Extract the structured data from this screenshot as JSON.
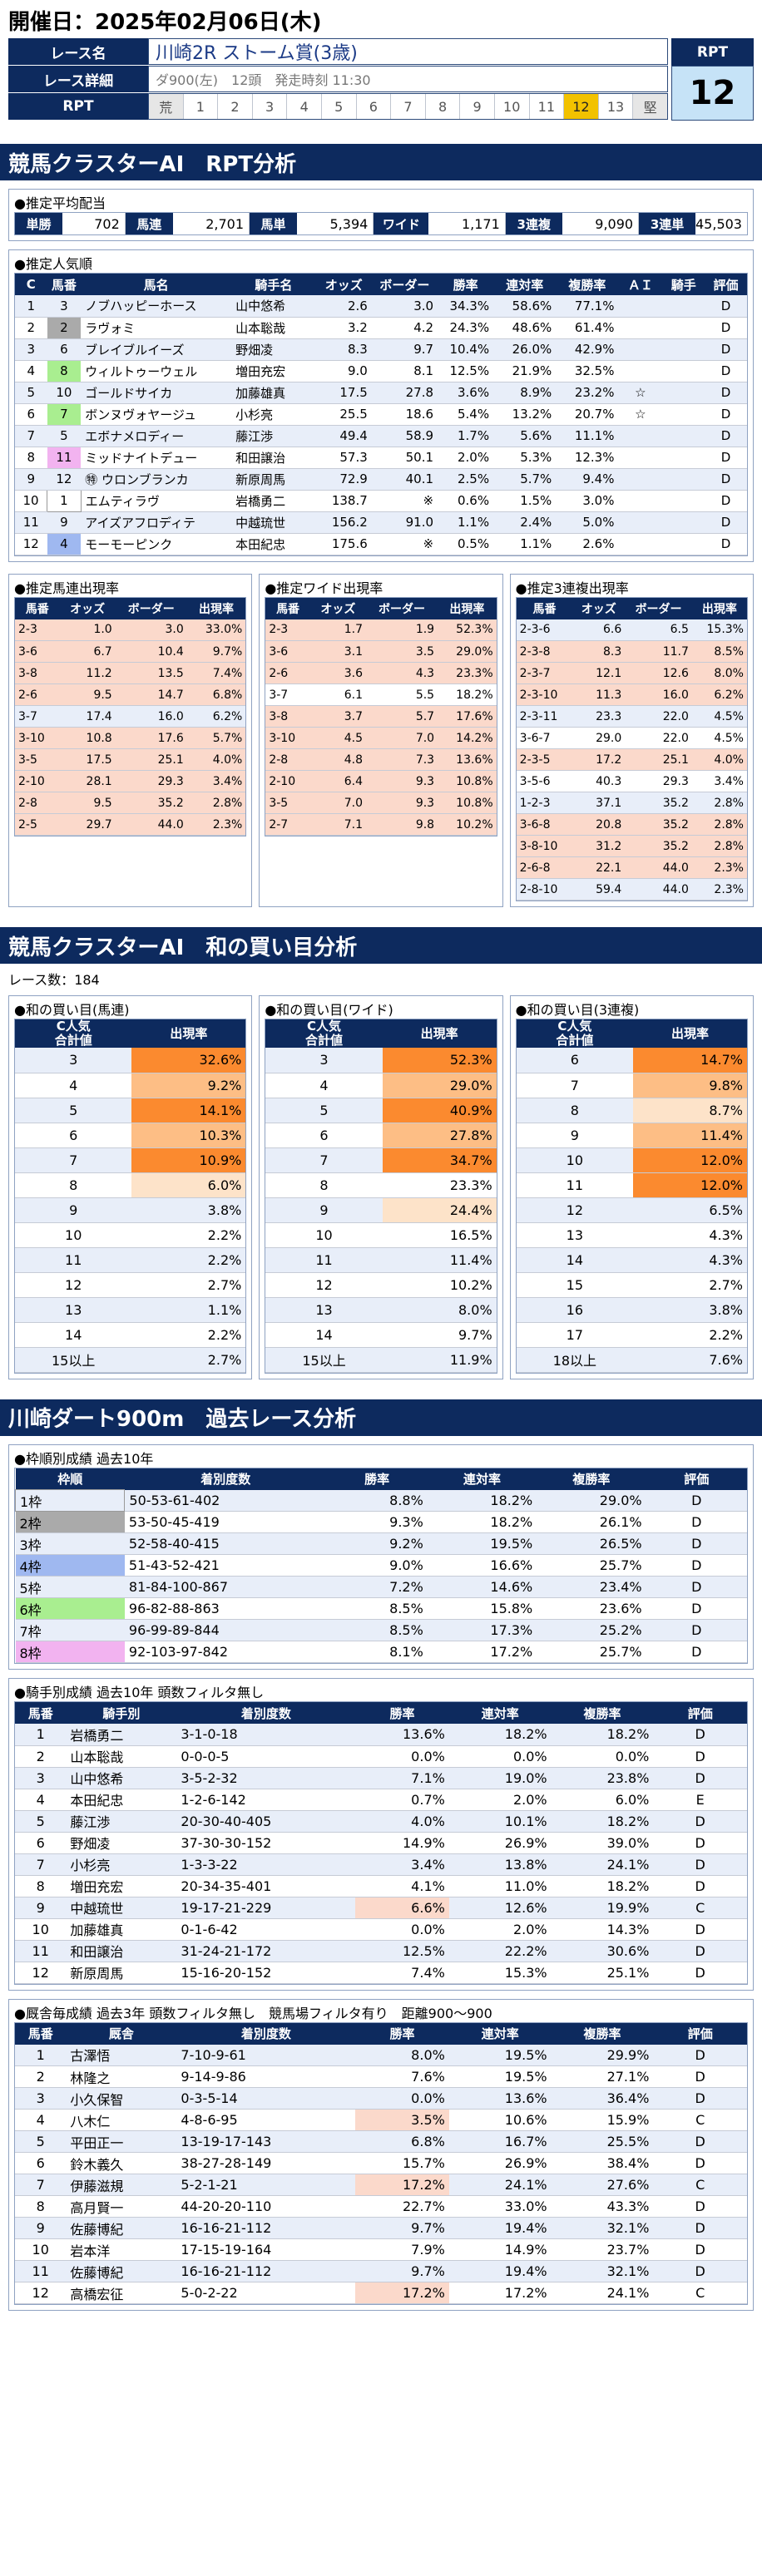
{
  "page_title": "開催日：2025年02月06日(木)",
  "header": {
    "race_name_label": "レース名",
    "race_name": "川崎2R ストーム賞(3歳)",
    "race_detail_label": "レース詳細",
    "race_detail": "ダ900(左)　12頭　発走時刻 11:30",
    "rpt_label": "RPT",
    "rpt_scale": [
      "荒",
      "1",
      "2",
      "3",
      "4",
      "5",
      "6",
      "7",
      "8",
      "9",
      "10",
      "11",
      "12",
      "13",
      "堅"
    ],
    "rpt_active": "12",
    "rpt_box_label": "RPT",
    "rpt_box_value": "12"
  },
  "sec1_title": "競馬クラスターAI　RPT分析",
  "payout": {
    "heading": "●推定平均配当",
    "items": [
      {
        "label": "単勝",
        "value": "702"
      },
      {
        "label": "馬連",
        "value": "2,701"
      },
      {
        "label": "馬単",
        "value": "5,394"
      },
      {
        "label": "ワイド",
        "value": "1,171"
      },
      {
        "label": "3連複",
        "value": "9,090"
      },
      {
        "label": "3連単",
        "value": "45,503"
      }
    ]
  },
  "popularity": {
    "heading": "●推定人気順",
    "columns": [
      "C",
      "馬番",
      "馬名",
      "騎手名",
      "オッズ",
      "ボーダー",
      "勝率",
      "連対率",
      "複勝率",
      "ＡＩ",
      "騎手",
      "評価"
    ],
    "rows": [
      [
        "1",
        "3",
        "ノブハッピーホース",
        "山中悠希",
        "2.6",
        "3.0",
        "34.3%",
        "58.6%",
        "77.1%",
        "",
        "",
        "D"
      ],
      [
        "2",
        "2",
        "ラヴォミ",
        "山本聡哉",
        "3.2",
        "4.2",
        "24.3%",
        "48.6%",
        "61.4%",
        "",
        "",
        "D"
      ],
      [
        "3",
        "6",
        "ブレイブルイーズ",
        "野畑凌",
        "8.3",
        "9.7",
        "10.4%",
        "26.0%",
        "42.9%",
        "",
        "",
        "D"
      ],
      [
        "4",
        "8",
        "ウィルトゥーウェル",
        "増田充宏",
        "9.0",
        "8.1",
        "12.5%",
        "21.9%",
        "32.5%",
        "",
        "",
        "D"
      ],
      [
        "5",
        "10",
        "ゴールドサイカ",
        "加藤雄真",
        "17.5",
        "27.8",
        "3.6%",
        "8.9%",
        "23.2%",
        "☆",
        "",
        "D"
      ],
      [
        "6",
        "7",
        "ボンヌヴォヤージュ",
        "小杉亮",
        "25.5",
        "18.6",
        "5.4%",
        "13.2%",
        "20.7%",
        "☆",
        "",
        "D"
      ],
      [
        "7",
        "5",
        "エボナメロディー",
        "藤江渉",
        "49.4",
        "58.9",
        "1.7%",
        "5.6%",
        "11.1%",
        "",
        "",
        "D"
      ],
      [
        "8",
        "11",
        "ミッドナイトデュー",
        "和田譲治",
        "57.3",
        "50.1",
        "2.0%",
        "5.3%",
        "12.3%",
        "",
        "",
        "D"
      ],
      [
        "9",
        "12",
        "㊕ ウロンブランカ",
        "新原周馬",
        "72.9",
        "40.1",
        "2.5%",
        "5.7%",
        "9.4%",
        "",
        "",
        "D"
      ],
      [
        "10",
        "1",
        "エムティラヴ",
        "岩橋勇二",
        "138.7",
        "※",
        "0.6%",
        "1.5%",
        "3.0%",
        "",
        "",
        "D"
      ],
      [
        "11",
        "9",
        "アイズアフロディテ",
        "中越琉世",
        "156.2",
        "91.0",
        "1.1%",
        "2.4%",
        "5.0%",
        "",
        "",
        "D"
      ],
      [
        "12",
        "4",
        "モーモーピンク",
        "本田紀忠",
        "175.6",
        "※",
        "0.5%",
        "1.1%",
        "2.6%",
        "",
        "",
        "D"
      ]
    ]
  },
  "umaren": {
    "heading": "●推定馬連出現率",
    "columns": [
      "馬番",
      "オッズ",
      "ボーダー",
      "出現率"
    ],
    "rows": [
      [
        "2-3",
        "1.0",
        "3.0",
        "33.0%"
      ],
      [
        "3-6",
        "6.7",
        "10.4",
        "9.7%"
      ],
      [
        "3-8",
        "11.2",
        "13.5",
        "7.4%"
      ],
      [
        "2-6",
        "9.5",
        "14.7",
        "6.8%"
      ],
      [
        "3-7",
        "17.4",
        "16.0",
        "6.2%"
      ],
      [
        "3-10",
        "10.8",
        "17.6",
        "5.7%"
      ],
      [
        "3-5",
        "17.5",
        "25.1",
        "4.0%"
      ],
      [
        "2-10",
        "28.1",
        "29.3",
        "3.4%"
      ],
      [
        "2-8",
        "9.5",
        "35.2",
        "2.8%"
      ],
      [
        "2-5",
        "29.7",
        "44.0",
        "2.3%"
      ]
    ]
  },
  "wide": {
    "heading": "●推定ワイド出現率",
    "columns": [
      "馬番",
      "オッズ",
      "ボーダー",
      "出現率"
    ],
    "rows": [
      [
        "2-3",
        "1.7",
        "1.9",
        "52.3%"
      ],
      [
        "3-6",
        "3.1",
        "3.5",
        "29.0%"
      ],
      [
        "2-6",
        "3.6",
        "4.3",
        "23.3%"
      ],
      [
        "3-7",
        "6.1",
        "5.5",
        "18.2%"
      ],
      [
        "3-8",
        "3.7",
        "5.7",
        "17.6%"
      ],
      [
        "3-10",
        "4.5",
        "7.0",
        "14.2%"
      ],
      [
        "2-8",
        "4.8",
        "7.3",
        "13.6%"
      ],
      [
        "2-10",
        "6.4",
        "9.3",
        "10.8%"
      ],
      [
        "3-5",
        "7.0",
        "9.3",
        "10.8%"
      ],
      [
        "2-7",
        "7.1",
        "9.8",
        "10.2%"
      ]
    ]
  },
  "sanrenpuku": {
    "heading": "●推定3連複出現率",
    "columns": [
      "馬番",
      "オッズ",
      "ボーダー",
      "出現率"
    ],
    "rows": [
      [
        "2-3-6",
        "6.6",
        "6.5",
        "15.3%"
      ],
      [
        "2-3-8",
        "8.3",
        "11.7",
        "8.5%"
      ],
      [
        "2-3-7",
        "12.1",
        "12.6",
        "8.0%"
      ],
      [
        "2-3-10",
        "11.3",
        "16.0",
        "6.2%"
      ],
      [
        "2-3-11",
        "23.3",
        "22.0",
        "4.5%"
      ],
      [
        "3-6-7",
        "29.0",
        "22.0",
        "4.5%"
      ],
      [
        "2-3-5",
        "17.2",
        "25.1",
        "4.0%"
      ],
      [
        "3-5-6",
        "40.3",
        "29.3",
        "3.4%"
      ],
      [
        "1-2-3",
        "37.1",
        "35.2",
        "2.8%"
      ],
      [
        "3-6-8",
        "20.8",
        "35.2",
        "2.8%"
      ],
      [
        "3-8-10",
        "31.2",
        "35.2",
        "2.8%"
      ],
      [
        "2-6-8",
        "22.1",
        "44.0",
        "2.3%"
      ],
      [
        "2-8-10",
        "59.4",
        "44.0",
        "2.3%"
      ]
    ]
  },
  "sec2_title": "競馬クラスターAI　和の買い目分析",
  "race_count": "レース数：184",
  "wa_umaren": {
    "heading": "●和の買い目(馬連)",
    "col1": "C人気\n合計値",
    "col2": "出現率",
    "rows": [
      [
        "3",
        "32.6%"
      ],
      [
        "4",
        "9.2%"
      ],
      [
        "5",
        "14.1%"
      ],
      [
        "6",
        "10.3%"
      ],
      [
        "7",
        "10.9%"
      ],
      [
        "8",
        "6.0%"
      ],
      [
        "9",
        "3.8%"
      ],
      [
        "10",
        "2.2%"
      ],
      [
        "11",
        "2.2%"
      ],
      [
        "12",
        "2.7%"
      ],
      [
        "13",
        "1.1%"
      ],
      [
        "14",
        "2.2%"
      ],
      [
        "15以上",
        "2.7%"
      ]
    ]
  },
  "wa_wide": {
    "heading": "●和の買い目(ワイド)",
    "col1": "C人気\n合計値",
    "col2": "出現率",
    "rows": [
      [
        "3",
        "52.3%"
      ],
      [
        "4",
        "29.0%"
      ],
      [
        "5",
        "40.9%"
      ],
      [
        "6",
        "27.8%"
      ],
      [
        "7",
        "34.7%"
      ],
      [
        "8",
        "23.3%"
      ],
      [
        "9",
        "24.4%"
      ],
      [
        "10",
        "16.5%"
      ],
      [
        "11",
        "11.4%"
      ],
      [
        "12",
        "10.2%"
      ],
      [
        "13",
        "8.0%"
      ],
      [
        "14",
        "9.7%"
      ],
      [
        "15以上",
        "11.9%"
      ]
    ]
  },
  "wa_sanrenpuku": {
    "heading": "●和の買い目(3連複)",
    "col1": "C人気\n合計値",
    "col2": "出現率",
    "rows": [
      [
        "6",
        "14.7%"
      ],
      [
        "7",
        "9.8%"
      ],
      [
        "8",
        "8.7%"
      ],
      [
        "9",
        "11.4%"
      ],
      [
        "10",
        "12.0%"
      ],
      [
        "11",
        "12.0%"
      ],
      [
        "12",
        "6.5%"
      ],
      [
        "13",
        "4.3%"
      ],
      [
        "14",
        "4.3%"
      ],
      [
        "15",
        "2.7%"
      ],
      [
        "16",
        "3.8%"
      ],
      [
        "17",
        "2.2%"
      ],
      [
        "18以上",
        "7.6%"
      ]
    ]
  },
  "sec3_title": "川崎ダート900m　過去レース分析",
  "waku": {
    "heading": "●枠順別成績 過去10年",
    "columns": [
      "枠順",
      "着別度数",
      "勝率",
      "連対率",
      "複勝率",
      "評価"
    ],
    "rows": [
      [
        "1枠",
        "50-53-61-402",
        "8.8%",
        "18.2%",
        "29.0%",
        "D"
      ],
      [
        "2枠",
        "53-50-45-419",
        "9.3%",
        "18.2%",
        "26.1%",
        "D"
      ],
      [
        "3枠",
        "52-58-40-415",
        "9.2%",
        "19.5%",
        "26.5%",
        "D"
      ],
      [
        "4枠",
        "51-43-52-421",
        "9.0%",
        "16.6%",
        "25.7%",
        "D"
      ],
      [
        "5枠",
        "81-84-100-867",
        "7.2%",
        "14.6%",
        "23.4%",
        "D"
      ],
      [
        "6枠",
        "96-82-88-863",
        "8.5%",
        "15.8%",
        "23.6%",
        "D"
      ],
      [
        "7枠",
        "96-99-89-844",
        "8.5%",
        "17.3%",
        "25.2%",
        "D"
      ],
      [
        "8枠",
        "92-103-97-842",
        "8.1%",
        "17.2%",
        "25.7%",
        "D"
      ]
    ]
  },
  "jockey": {
    "heading": "●騎手別成績 過去10年 頭数フィルタ無し",
    "columns": [
      "馬番",
      "騎手別",
      "着別度数",
      "勝率",
      "連対率",
      "複勝率",
      "評価"
    ],
    "rows": [
      [
        "1",
        "岩橋勇二",
        "3-1-0-18",
        "13.6%",
        "18.2%",
        "18.2%",
        "D"
      ],
      [
        "2",
        "山本聡哉",
        "0-0-0-5",
        "0.0%",
        "0.0%",
        "0.0%",
        "D"
      ],
      [
        "3",
        "山中悠希",
        "3-5-2-32",
        "7.1%",
        "19.0%",
        "23.8%",
        "D"
      ],
      [
        "4",
        "本田紀忠",
        "1-2-6-142",
        "0.7%",
        "2.0%",
        "6.0%",
        "E"
      ],
      [
        "5",
        "藤江渉",
        "20-30-40-405",
        "4.0%",
        "10.1%",
        "18.2%",
        "D"
      ],
      [
        "6",
        "野畑凌",
        "37-30-30-152",
        "14.9%",
        "26.9%",
        "39.0%",
        "D"
      ],
      [
        "7",
        "小杉亮",
        "1-3-3-22",
        "3.4%",
        "13.8%",
        "24.1%",
        "D"
      ],
      [
        "8",
        "増田充宏",
        "20-34-35-401",
        "4.1%",
        "11.0%",
        "18.2%",
        "D"
      ],
      [
        "9",
        "中越琉世",
        "19-17-21-229",
        "6.6%",
        "12.6%",
        "19.9%",
        "C"
      ],
      [
        "10",
        "加藤雄真",
        "0-1-6-42",
        "0.0%",
        "2.0%",
        "14.3%",
        "D"
      ],
      [
        "11",
        "和田譲治",
        "31-24-21-172",
        "12.5%",
        "22.2%",
        "30.6%",
        "D"
      ],
      [
        "12",
        "新原周馬",
        "15-16-20-152",
        "7.4%",
        "15.3%",
        "25.1%",
        "D"
      ]
    ]
  },
  "trainer": {
    "heading": "●厩舎毎成績 過去3年 頭数フィルタ無し　競馬場フィルタ有り　距離900～900",
    "columns": [
      "馬番",
      "厩舎",
      "着別度数",
      "勝率",
      "連対率",
      "複勝率",
      "評価"
    ],
    "rows": [
      [
        "1",
        "古澤悟",
        "7-10-9-61",
        "8.0%",
        "19.5%",
        "29.9%",
        "D"
      ],
      [
        "2",
        "林隆之",
        "9-14-9-86",
        "7.6%",
        "19.5%",
        "27.1%",
        "D"
      ],
      [
        "3",
        "小久保智",
        "0-3-5-14",
        "0.0%",
        "13.6%",
        "36.4%",
        "D"
      ],
      [
        "4",
        "八木仁",
        "4-8-6-95",
        "3.5%",
        "10.6%",
        "15.9%",
        "C"
      ],
      [
        "5",
        "平田正一",
        "13-19-17-143",
        "6.8%",
        "16.7%",
        "25.5%",
        "D"
      ],
      [
        "6",
        "鈴木義久",
        "38-27-28-149",
        "15.7%",
        "26.9%",
        "38.4%",
        "D"
      ],
      [
        "7",
        "伊藤滋規",
        "5-2-1-21",
        "17.2%",
        "24.1%",
        "27.6%",
        "C"
      ],
      [
        "8",
        "高月賢一",
        "44-20-20-110",
        "22.7%",
        "33.0%",
        "43.3%",
        "D"
      ],
      [
        "9",
        "佐藤博紀",
        "16-16-21-112",
        "9.7%",
        "19.4%",
        "32.1%",
        "D"
      ],
      [
        "10",
        "岩本洋",
        "17-15-19-164",
        "7.9%",
        "14.9%",
        "23.7%",
        "D"
      ],
      [
        "11",
        "佐藤博紀",
        "16-16-21-112",
        "9.7%",
        "19.4%",
        "32.1%",
        "D"
      ],
      [
        "12",
        "高橋宏征",
        "5-0-2-22",
        "17.2%",
        "17.2%",
        "24.1%",
        "C"
      ]
    ]
  }
}
